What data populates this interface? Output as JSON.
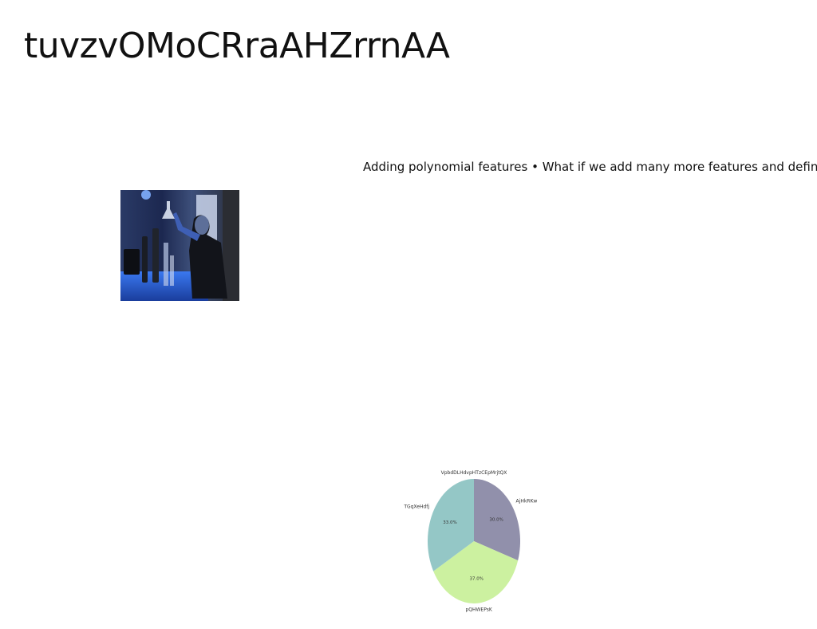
{
  "slide": {
    "title": "tuvzvOMoCRraAHZrrnAA",
    "body": "Adding polynomial features • What if we add many more features and define x"
  },
  "photo": {
    "subject": "person-in-lab-holding-flask",
    "palette": {
      "dark": "#121a2e",
      "blue": "#2f5fd0",
      "light": "#e8eefc"
    }
  },
  "chart_data": {
    "type": "pie",
    "title": "",
    "labels": [
      "VpbdDLHdvpHTzCEpMrjtQX",
      "AjHkRKw",
      "pQHWEPsK",
      "TGqXeHdfj"
    ],
    "values": [
      0,
      30.0,
      37.0,
      33.0
    ],
    "percent_labels": [
      "",
      "30.0%",
      "37.0%",
      "33.0%"
    ],
    "colors": [
      "#94c7c6",
      "#9190ab",
      "#ccf1a0",
      "#94c7c6"
    ],
    "start_angle": 90,
    "direction": "clockwise",
    "legend": "none"
  }
}
